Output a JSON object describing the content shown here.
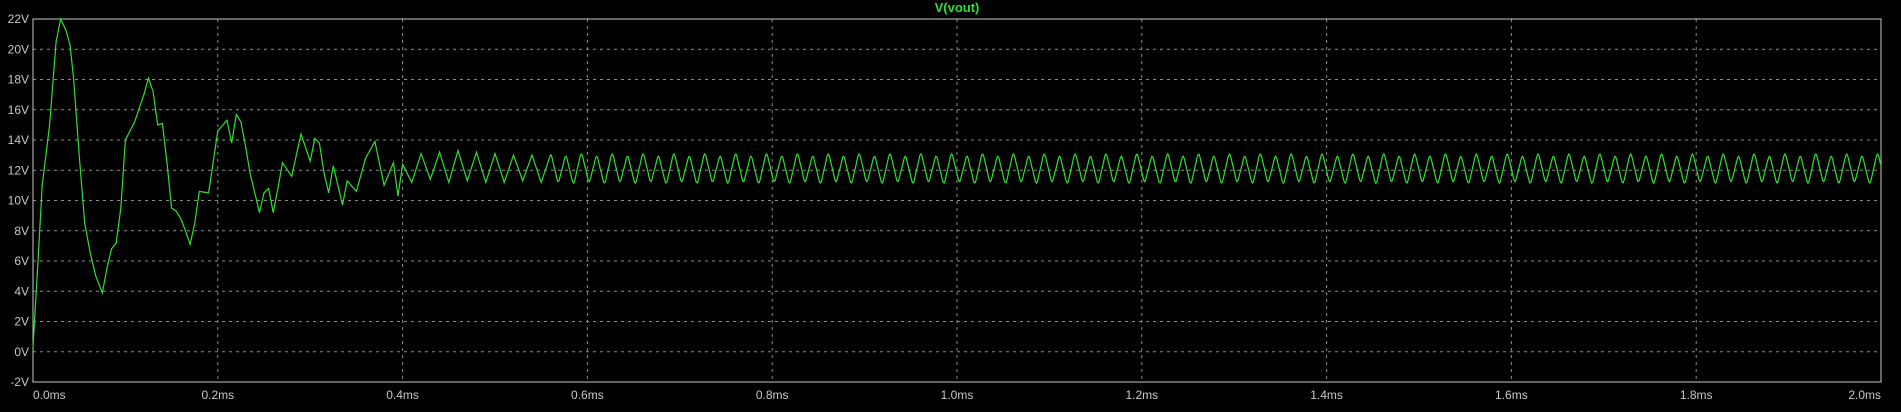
{
  "colors": {
    "background": "#000000",
    "grid": "#8c8c8c",
    "frame": "#c8c8c8",
    "trace": "#2fe02f",
    "label": "#c8c8c8"
  },
  "chart_data": {
    "type": "line",
    "title": "V(vout)",
    "xlabel": "",
    "ylabel": "",
    "xlim": [
      0,
      2.0
    ],
    "ylim": [
      -2,
      22
    ],
    "grid": true,
    "legend": "none",
    "x_ticks": [
      "0.0ms",
      "0.2ms",
      "0.4ms",
      "0.6ms",
      "0.8ms",
      "1.0ms",
      "1.2ms",
      "1.4ms",
      "1.6ms",
      "1.8ms",
      "2.0ms"
    ],
    "x_tick_values": [
      0,
      0.2,
      0.4,
      0.6,
      0.8,
      1.0,
      1.2,
      1.4,
      1.6,
      1.8,
      2.0
    ],
    "y_ticks": [
      "-2V",
      "0V",
      "2V",
      "4V",
      "6V",
      "8V",
      "10V",
      "12V",
      "14V",
      "16V",
      "18V",
      "20V",
      "22V"
    ],
    "y_tick_values": [
      -2,
      0,
      2,
      4,
      6,
      8,
      10,
      12,
      14,
      16,
      18,
      20,
      22
    ],
    "series": [
      {
        "name": "V(vout)",
        "x": [
          0.0,
          0.005,
          0.01,
          0.018,
          0.025,
          0.03,
          0.036,
          0.04,
          0.044,
          0.05,
          0.056,
          0.062,
          0.068,
          0.075,
          0.08,
          0.085,
          0.09,
          0.095,
          0.1,
          0.11,
          0.12,
          0.125,
          0.13,
          0.135,
          0.14,
          0.145,
          0.15,
          0.155,
          0.16,
          0.165,
          0.17,
          0.175,
          0.18,
          0.19,
          0.2,
          0.21,
          0.215,
          0.22,
          0.225,
          0.23,
          0.235,
          0.24,
          0.245,
          0.25,
          0.255,
          0.26,
          0.265,
          0.27,
          0.28,
          0.29,
          0.3,
          0.305,
          0.31,
          0.315,
          0.32,
          0.325,
          0.33,
          0.335,
          0.34,
          0.35,
          0.36,
          0.37,
          0.38,
          0.39,
          0.395,
          0.4,
          0.41,
          0.42,
          0.43,
          0.44,
          0.45,
          0.46,
          0.47,
          0.48,
          0.49,
          0.5,
          0.51,
          0.52,
          0.53,
          0.54,
          0.55,
          0.56
        ],
        "y": [
          0.3,
          5.5,
          11.0,
          15.0,
          20.5,
          22.0,
          21.2,
          20.3,
          18.0,
          13.0,
          8.5,
          6.5,
          5.0,
          3.9,
          5.5,
          6.8,
          7.2,
          9.5,
          14.0,
          15.2,
          17.0,
          18.1,
          17.2,
          15.0,
          15.1,
          12.5,
          9.5,
          9.3,
          8.8,
          8.0,
          7.1,
          8.5,
          10.6,
          10.5,
          14.6,
          15.3,
          13.8,
          15.7,
          15.2,
          13.6,
          11.8,
          10.5,
          9.2,
          10.5,
          10.8,
          9.2,
          10.8,
          12.5,
          11.6,
          14.4,
          12.6,
          14.1,
          13.8,
          11.8,
          10.5,
          12.3,
          11.0,
          9.7,
          11.3,
          10.6,
          12.8,
          13.9,
          11.0,
          12.5,
          10.3,
          12.4,
          11.2,
          13.1,
          11.4,
          13.2,
          11.2,
          13.3,
          11.3,
          13.2,
          11.2,
          13.1,
          11.2,
          13.0,
          11.3,
          13.0,
          11.2,
          13.0
        ],
        "steady_state": {
          "min": 11.2,
          "max": 13.0,
          "period": 0.0167,
          "until": 2.0
        }
      }
    ]
  }
}
